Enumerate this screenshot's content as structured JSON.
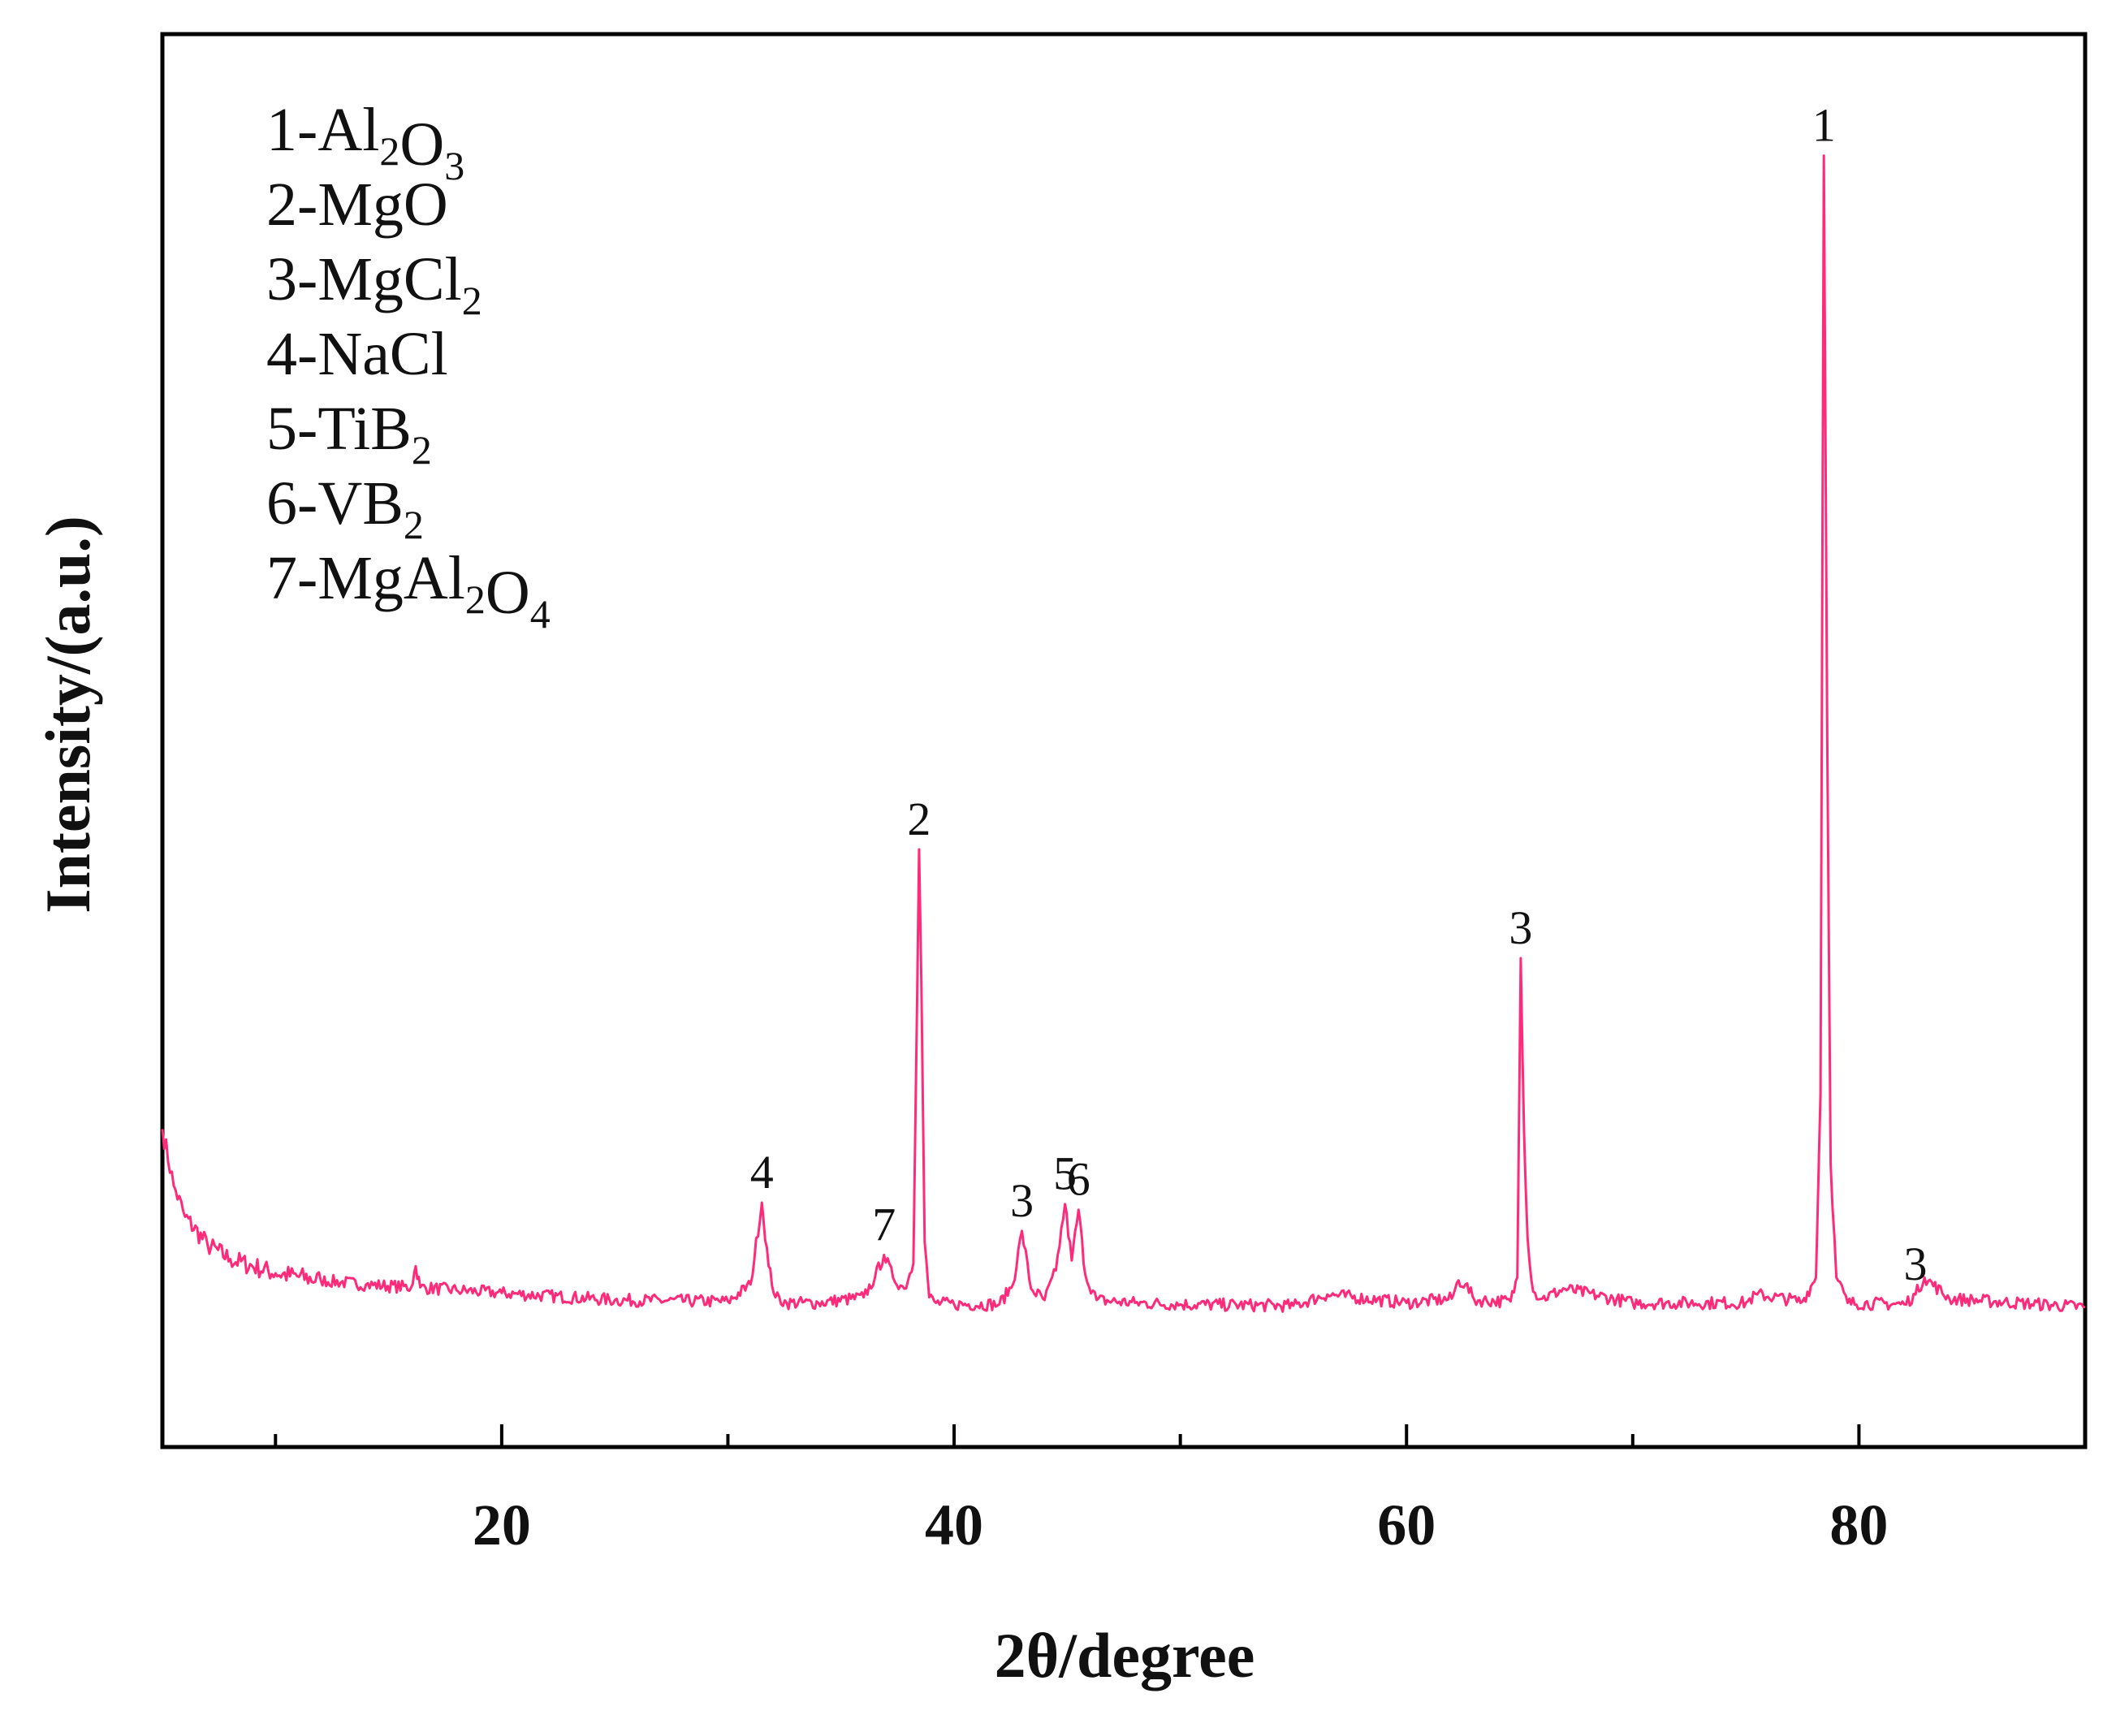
{
  "chart_data": {
    "type": "line",
    "title": "",
    "xlabel": "2θ/degree",
    "ylabel": "Intensity/(a.u.)",
    "xlim": [
      5,
      90
    ],
    "ylim": [
      0,
      100
    ],
    "x_ticks": [
      20,
      40,
      60,
      80
    ],
    "x_minor_ticks": [
      10,
      30,
      50,
      70
    ],
    "grid": false,
    "line_color": "#ff2a7a",
    "series": [
      {
        "x": [
          5.0,
          5.5,
          6.0,
          7.0,
          8.0,
          10.0,
          12.0,
          14.0,
          16.0,
          16.2,
          16.4,
          18.0,
          20.0,
          25.0,
          30.0,
          31.0,
          31.5,
          31.8,
          32.1,
          32.6,
          34.0,
          36.0,
          36.5,
          36.9,
          37.3,
          37.8,
          38.2,
          38.45,
          38.55,
          38.7,
          38.9,
          39.2,
          40.0,
          42.0,
          42.6,
          43.0,
          43.4,
          44.0,
          44.5,
          44.9,
          45.2,
          45.5,
          45.8,
          46.3,
          48.0,
          50.0,
          55.0,
          56.5,
          60.0,
          62.0,
          62.3,
          62.6,
          63.0,
          64.6,
          64.9,
          65.05,
          65.2,
          65.35,
          65.6,
          66.0,
          67.0,
          70.0,
          75.0,
          75.5,
          77.5,
          78.1,
          78.3,
          78.45,
          78.6,
          78.75,
          79.0,
          79.5,
          82.0,
          82.5,
          82.9,
          84.0,
          90.0
        ],
        "y": [
          22.5,
          18.5,
          16.3,
          14.3,
          13.3,
          12.3,
          11.8,
          11.5,
          11.3,
          12.8,
          11.3,
          11.1,
          10.9,
          10.4,
          10.3,
          11.5,
          17.3,
          12.8,
          10.6,
          10.2,
          10.2,
          10.6,
          12.0,
          13.6,
          12.0,
          11.2,
          13.0,
          42.3,
          33.0,
          14.5,
          10.6,
          10.2,
          10.1,
          10.1,
          11.5,
          15.3,
          11.2,
          10.4,
          12.5,
          17.2,
          13.2,
          16.8,
          12.2,
          10.4,
          10.2,
          10.1,
          10.0,
          10.8,
          10.2,
          10.5,
          11.8,
          11.5,
          10.4,
          10.3,
          12.0,
          34.6,
          22.0,
          14.8,
          11.0,
          10.5,
          11.2,
          10.2,
          10.2,
          10.8,
          10.3,
          12.0,
          25.0,
          91.4,
          50.0,
          20.0,
          12.0,
          10.2,
          10.1,
          10.8,
          12.0,
          10.5,
          9.9
        ]
      }
    ],
    "peak_labels": [
      {
        "text": "1",
        "x": 78.45,
        "y": 91.4
      },
      {
        "text": "2",
        "x": 38.45,
        "y": 42.3
      },
      {
        "text": "3",
        "x": 65.05,
        "y": 34.6
      },
      {
        "text": "4",
        "x": 31.5,
        "y": 17.3
      },
      {
        "text": "7",
        "x": 36.9,
        "y": 13.6
      },
      {
        "text": "3",
        "x": 43.0,
        "y": 15.3
      },
      {
        "text": "5",
        "x": 44.9,
        "y": 17.2
      },
      {
        "text": "6",
        "x": 45.5,
        "y": 16.8
      },
      {
        "text": "3",
        "x": 82.5,
        "y": 10.8
      }
    ],
    "legend_position": "top-left",
    "legend": [
      {
        "prefix": "1-",
        "parts": [
          {
            "t": "Al",
            "sub": false
          },
          {
            "t": "2",
            "sub": true
          },
          {
            "t": "O",
            "sub": false
          },
          {
            "t": "3",
            "sub": true
          }
        ]
      },
      {
        "prefix": "2-",
        "parts": [
          {
            "t": "MgO",
            "sub": false
          }
        ]
      },
      {
        "prefix": "3-",
        "parts": [
          {
            "t": "MgCl",
            "sub": false
          },
          {
            "t": "2",
            "sub": true
          }
        ]
      },
      {
        "prefix": "4-",
        "parts": [
          {
            "t": "NaCl",
            "sub": false
          }
        ]
      },
      {
        "prefix": "5-",
        "parts": [
          {
            "t": "TiB",
            "sub": false
          },
          {
            "t": "2",
            "sub": true
          }
        ]
      },
      {
        "prefix": "6-",
        "parts": [
          {
            "t": "VB",
            "sub": false
          },
          {
            "t": "2",
            "sub": true
          }
        ]
      },
      {
        "prefix": "7-",
        "parts": [
          {
            "t": "MgAl",
            "sub": false
          },
          {
            "t": "2",
            "sub": true
          },
          {
            "t": "O",
            "sub": false
          },
          {
            "t": "4",
            "sub": true
          }
        ]
      }
    ]
  }
}
